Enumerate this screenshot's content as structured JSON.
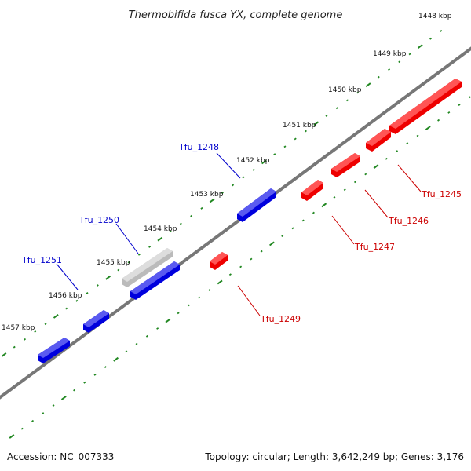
{
  "title": "Thermobifida fusca YX, complete genome",
  "footer": {
    "accession": "Accession: NC_007333",
    "summary": "Topology: circular; Length: 3,642,249 bp; Genes: 3,176"
  },
  "colors": {
    "forward_gene": "#0000dd",
    "reverse_gene": "#ee0000",
    "selected_gene": "#bbbbbb",
    "backbone": "#777777",
    "ticks": "#228822",
    "forward_label": "#0000cc",
    "reverse_label": "#cc0000"
  },
  "tick_labels": [
    "1448 kbp",
    "1449 kbp",
    "1450 kbp",
    "1451 kbp",
    "1452 kbp",
    "1453 kbp",
    "1454 kbp",
    "1455 kbp",
    "1456 kbp",
    "1457 kbp"
  ],
  "genes": {
    "forward": [
      "Tfu_1248",
      "Tfu_1250",
      "Tfu_1251"
    ],
    "reverse": [
      "Tfu_1245",
      "Tfu_1246",
      "Tfu_1247",
      "Tfu_1249"
    ]
  }
}
